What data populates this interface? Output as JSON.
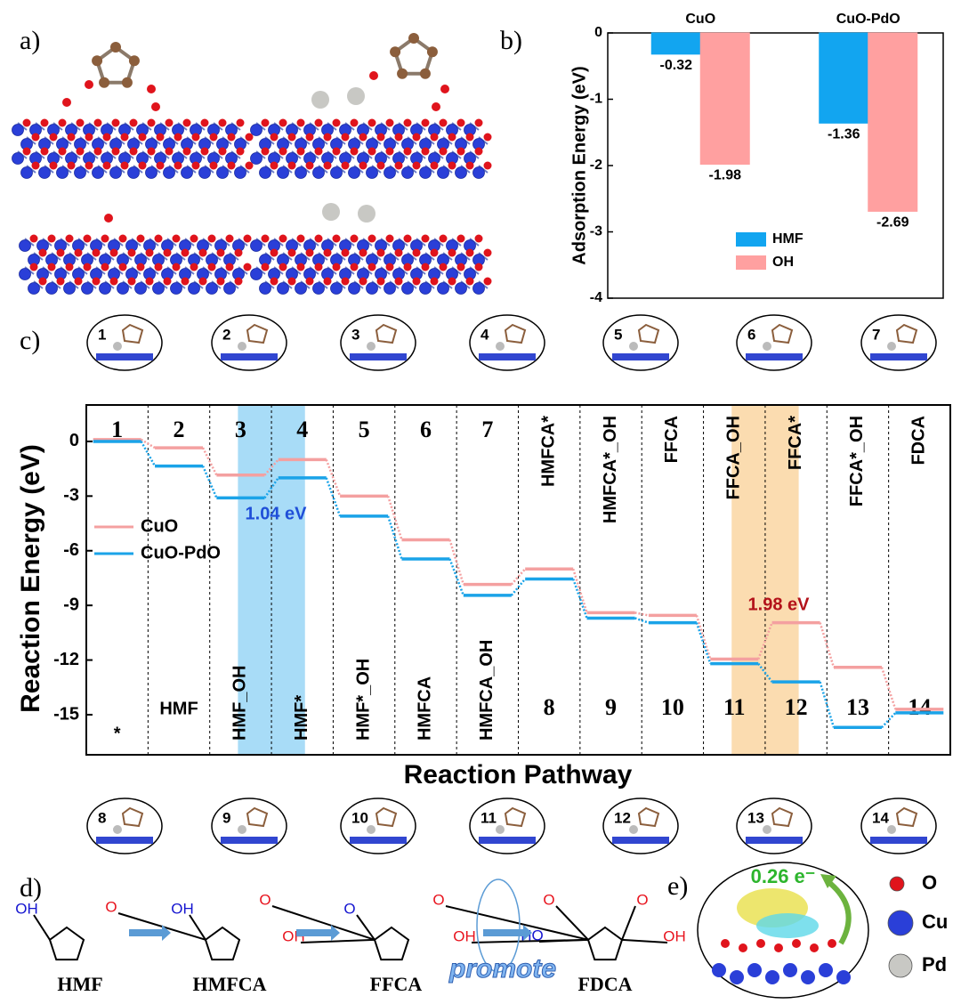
{
  "panel_labels": [
    "a)",
    "b)",
    "c)",
    "d)",
    "e)"
  ],
  "chart_data": [
    {
      "type": "bar",
      "ylabel": "Adsorption Energy (eV)",
      "categories": [
        "CuO",
        "CuO-PdO"
      ],
      "series": [
        {
          "name": "HMF",
          "color": "#12a5f0",
          "values": [
            -0.32,
            -1.36
          ]
        },
        {
          "name": "OH",
          "color": "#ffa0a0",
          "values": [
            -1.98,
            -2.69
          ]
        }
      ],
      "ylim": [
        -4,
        0
      ],
      "yticks": [
        -4,
        -3,
        -2,
        -1,
        0
      ]
    },
    {
      "type": "step",
      "xlabel": "Reaction Pathway",
      "ylabel": "Reaction Energy (eV)",
      "categories": [
        "1",
        "2",
        "3",
        "4",
        "5",
        "6",
        "7",
        "8",
        "9",
        "10",
        "11",
        "12",
        "13",
        "14"
      ],
      "states": [
        "*",
        "HMF",
        "HMF_OH",
        "HMF*",
        "HMF*_OH",
        "HMFCA",
        "HMFCA_OH",
        "HMFCA*",
        "HMFCA*_OH",
        "FFCA",
        "FFCA_OH",
        "FFCA*",
        "FFCA*_OH",
        "FDCA"
      ],
      "series": [
        {
          "name": "CuO",
          "color": "#f4a0a0",
          "values": [
            0.1,
            -0.35,
            -1.85,
            -1.0,
            -3.0,
            -5.4,
            -7.85,
            -7.0,
            -9.4,
            -9.55,
            -11.95,
            -9.95,
            -12.4,
            -14.7
          ]
        },
        {
          "name": "CuO-PdO",
          "color": "#1aa3e8",
          "values": [
            0,
            -1.35,
            -3.1,
            -2.0,
            -4.1,
            -6.45,
            -8.45,
            -7.55,
            -9.7,
            -9.95,
            -12.2,
            -13.2,
            -15.7,
            -14.9
          ]
        }
      ],
      "ylim": [
        -17.2,
        2
      ],
      "yticks": [
        -15,
        -12,
        -9,
        -6,
        -3,
        0
      ],
      "highlights": [
        {
          "from": "3",
          "to": "4",
          "color": "#a8dcf7"
        },
        {
          "from": "11",
          "to": "12",
          "color": "#fbdcb0"
        }
      ],
      "annotations": [
        {
          "text": "1.04 eV",
          "color": "#1f4fd8"
        },
        {
          "text": "1.98 eV",
          "color": "#b3121a"
        }
      ]
    }
  ],
  "scheme": {
    "compounds": [
      "HMF",
      "HMFCA",
      "FFCA",
      "FDCA"
    ],
    "promote": "promote",
    "atom_labels": [
      {
        "text": "OH",
        "color": "#1515d0"
      },
      {
        "text": "O",
        "color": "#e8141e"
      },
      {
        "text": "OH",
        "color": "#1515d0"
      },
      {
        "text": "O",
        "color": "#e8141e"
      },
      {
        "text": "OH",
        "color": "#e8141e"
      },
      {
        "text": "O",
        "color": "#1515d0"
      },
      {
        "text": "O",
        "color": "#e8141e"
      },
      {
        "text": "OH",
        "color": "#e8141e"
      },
      {
        "text": "HO",
        "color": "#1515d0"
      },
      {
        "text": "O",
        "color": "#e8141e"
      },
      {
        "text": "O",
        "color": "#e8141e"
      },
      {
        "text": "OH",
        "color": "#e8141e"
      }
    ]
  },
  "charge": {
    "label": "0.26 e⁻",
    "legend": [
      "O",
      "Cu",
      "Pd"
    ]
  }
}
